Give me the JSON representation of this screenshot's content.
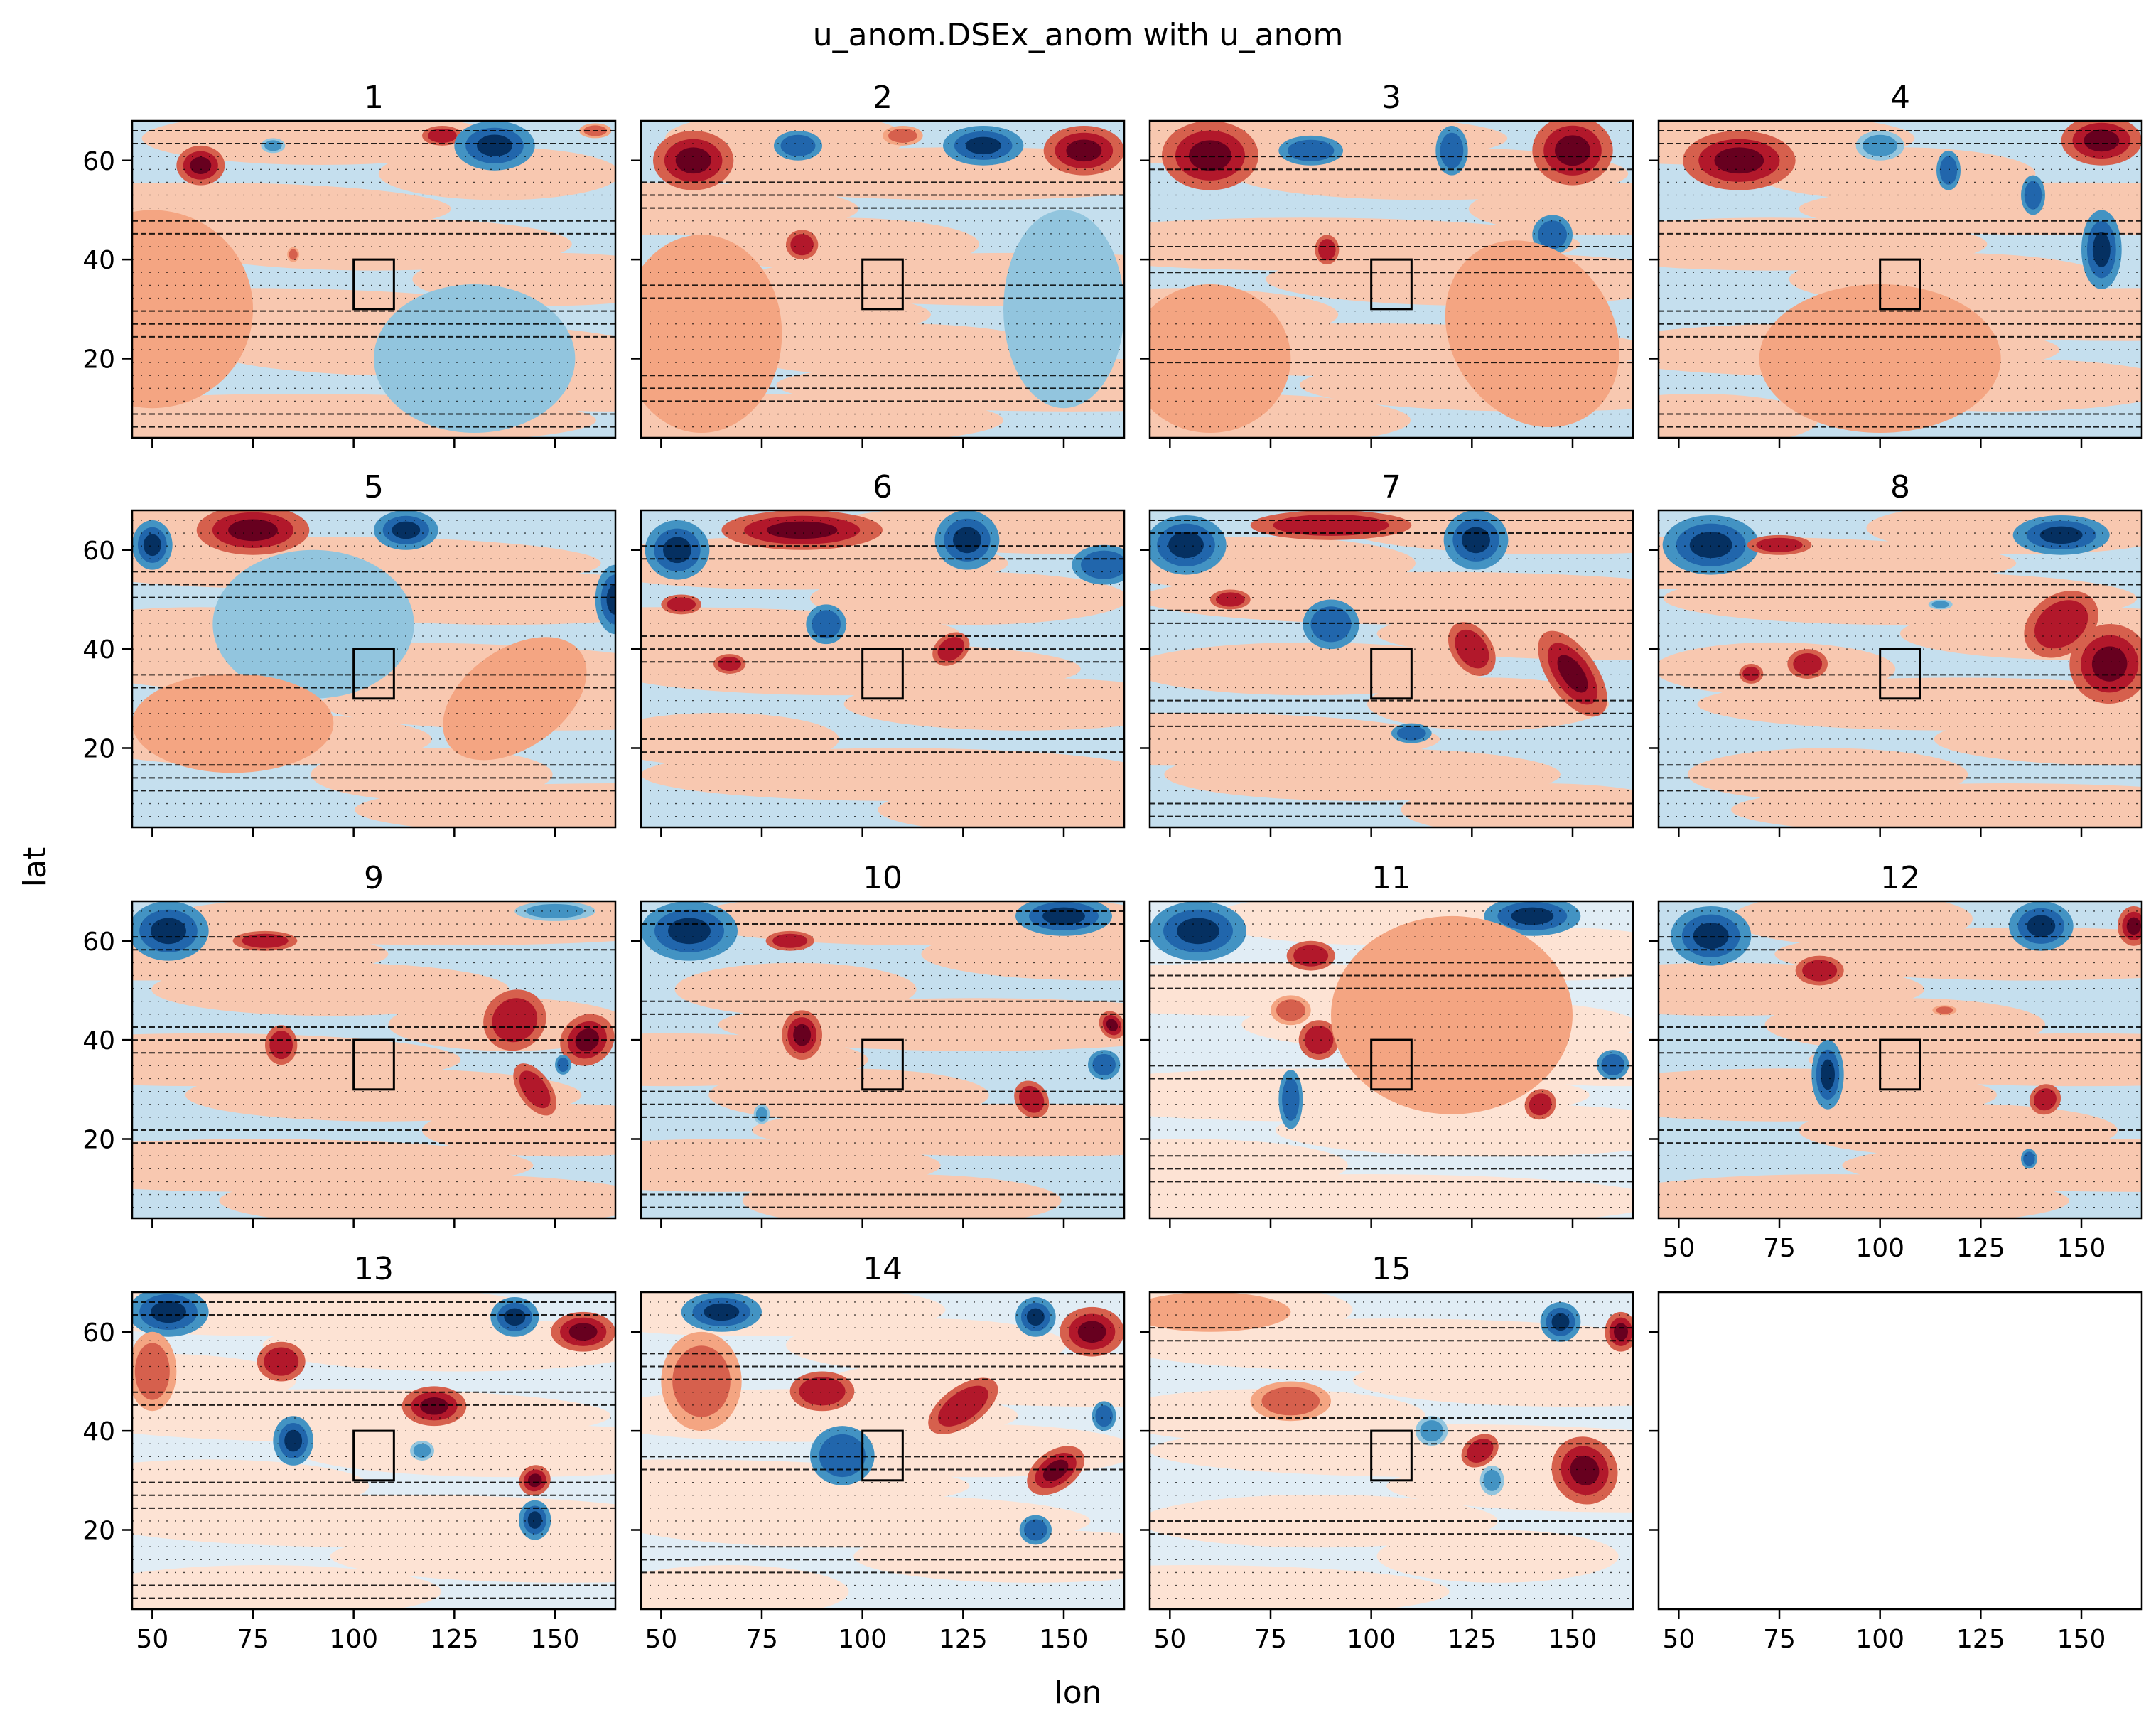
{
  "chart_data": {
    "type": "contour-grid",
    "title": "u_anom.DSEx_anom with u_anom",
    "xlabel": "lon",
    "ylabel": "lat",
    "xlim": [
      45,
      165
    ],
    "ylim": [
      4,
      68
    ],
    "x_ticks": [
      50,
      75,
      100,
      125,
      150
    ],
    "y_ticks": [
      20,
      40,
      60
    ],
    "box": {
      "lon": [
        100,
        110
      ],
      "lat": [
        30,
        40
      ]
    },
    "colormap": [
      "#053061",
      "#2166ac",
      "#4393c3",
      "#92c5de",
      "#d1e5f0",
      "#fddbc7",
      "#f4a582",
      "#d6604d",
      "#b2182b",
      "#67001f"
    ],
    "panels": [
      {
        "label": "1",
        "features": [
          {
            "lon": 62,
            "lat": 59,
            "rx": 6,
            "ry": 4,
            "v": 0.9
          },
          {
            "lon": 85,
            "lat": 41,
            "rx": 1.5,
            "ry": 1.5,
            "v": 0.6
          },
          {
            "lon": 122,
            "lat": 65,
            "rx": 5,
            "ry": 2,
            "v": 0.7
          },
          {
            "lon": 135,
            "lat": 63,
            "rx": 10,
            "ry": 5,
            "v": -1
          },
          {
            "lon": 80,
            "lat": 63,
            "rx": 3,
            "ry": 1.5,
            "v": -0.6
          },
          {
            "lon": 160,
            "lat": 66,
            "rx": 4,
            "ry": 1.5,
            "v": 0.6
          },
          {
            "lon": 50,
            "lat": 30,
            "rx": 25,
            "ry": 20,
            "v": 0.15
          },
          {
            "lon": 130,
            "lat": 20,
            "rx": 25,
            "ry": 15,
            "v": -0.15
          }
        ]
      },
      {
        "label": "2",
        "features": [
          {
            "lon": 58,
            "lat": 60,
            "rx": 10,
            "ry": 6,
            "v": 1
          },
          {
            "lon": 84,
            "lat": 63,
            "rx": 6,
            "ry": 3,
            "v": -0.8
          },
          {
            "lon": 130,
            "lat": 63,
            "rx": 10,
            "ry": 4,
            "v": -0.9
          },
          {
            "lon": 155,
            "lat": 62,
            "rx": 10,
            "ry": 5,
            "v": 0.9
          },
          {
            "lon": 85,
            "lat": 43,
            "rx": 4,
            "ry": 3,
            "v": 0.8
          },
          {
            "lon": 110,
            "lat": 65,
            "rx": 5,
            "ry": 2,
            "v": 0.6
          },
          {
            "lon": 60,
            "lat": 25,
            "rx": 20,
            "ry": 20,
            "v": 0.15
          },
          {
            "lon": 150,
            "lat": 30,
            "rx": 15,
            "ry": 20,
            "v": -0.15
          }
        ]
      },
      {
        "label": "3",
        "features": [
          {
            "lon": 60,
            "lat": 61,
            "rx": 12,
            "ry": 7,
            "v": 1
          },
          {
            "lon": 85,
            "lat": 62,
            "rx": 8,
            "ry": 3,
            "v": -0.7
          },
          {
            "lon": 120,
            "lat": 62,
            "rx": 4,
            "ry": 5,
            "v": -0.8
          },
          {
            "lon": 150,
            "lat": 62,
            "rx": 10,
            "ry": 7,
            "v": 1
          },
          {
            "lon": 89,
            "lat": 42,
            "rx": 3,
            "ry": 3,
            "v": 0.8
          },
          {
            "lon": 145,
            "lat": 45,
            "rx": 5,
            "ry": 4,
            "v": -0.8
          },
          {
            "lon": 60,
            "lat": 20,
            "rx": 20,
            "ry": 15,
            "v": 0.15
          },
          {
            "lon": 140,
            "lat": 25,
            "rx": 20,
            "ry": 20,
            "v": 0.15
          }
        ]
      },
      {
        "label": "4",
        "features": [
          {
            "lon": 65,
            "lat": 60,
            "rx": 14,
            "ry": 6,
            "v": 0.9
          },
          {
            "lon": 100,
            "lat": 63,
            "rx": 6,
            "ry": 3,
            "v": -0.6
          },
          {
            "lon": 117,
            "lat": 58,
            "rx": 3,
            "ry": 4,
            "v": -0.7
          },
          {
            "lon": 155,
            "lat": 64,
            "rx": 10,
            "ry": 5,
            "v": 1
          },
          {
            "lon": 138,
            "lat": 53,
            "rx": 3,
            "ry": 4,
            "v": -0.8
          },
          {
            "lon": 155,
            "lat": 42,
            "rx": 5,
            "ry": 8,
            "v": -0.9
          },
          {
            "lon": 100,
            "lat": 20,
            "rx": 30,
            "ry": 15,
            "v": 0.15
          }
        ]
      },
      {
        "label": "5",
        "features": [
          {
            "lon": 75,
            "lat": 64,
            "rx": 14,
            "ry": 5,
            "v": 1
          },
          {
            "lon": 50,
            "lat": 61,
            "rx": 5,
            "ry": 5,
            "v": -1
          },
          {
            "lon": 113,
            "lat": 64,
            "rx": 8,
            "ry": 4,
            "v": -0.9
          },
          {
            "lon": 165,
            "lat": 50,
            "rx": 5,
            "ry": 7,
            "v": -0.9
          },
          {
            "lon": 90,
            "lat": 45,
            "rx": 25,
            "ry": 15,
            "v": -0.3
          },
          {
            "lon": 70,
            "lat": 25,
            "rx": 25,
            "ry": 10,
            "v": 0.3
          },
          {
            "lon": 140,
            "lat": 30,
            "rx": 20,
            "ry": 10,
            "v": 0.3
          }
        ]
      },
      {
        "label": "6",
        "features": [
          {
            "lon": 54,
            "lat": 60,
            "rx": 8,
            "ry": 6,
            "v": -1
          },
          {
            "lon": 85,
            "lat": 64,
            "rx": 20,
            "ry": 4,
            "v": 1
          },
          {
            "lon": 126,
            "lat": 62,
            "rx": 8,
            "ry": 6,
            "v": -0.9
          },
          {
            "lon": 160,
            "lat": 57,
            "rx": 8,
            "ry": 4,
            "v": -0.8
          },
          {
            "lon": 91,
            "lat": 45,
            "rx": 5,
            "ry": 4,
            "v": -0.8
          },
          {
            "lon": 55,
            "lat": 49,
            "rx": 5,
            "ry": 2,
            "v": 0.8
          },
          {
            "lon": 67,
            "lat": 37,
            "rx": 4,
            "ry": 2,
            "v": 0.7
          },
          {
            "lon": 122,
            "lat": 40,
            "rx": 5,
            "ry": 3,
            "v": 0.8
          }
        ]
      },
      {
        "label": "7",
        "features": [
          {
            "lon": 54,
            "lat": 61,
            "rx": 10,
            "ry": 6,
            "v": -1
          },
          {
            "lon": 90,
            "lat": 65,
            "rx": 20,
            "ry": 3,
            "v": 0.8
          },
          {
            "lon": 126,
            "lat": 62,
            "rx": 8,
            "ry": 6,
            "v": -0.9
          },
          {
            "lon": 90,
            "lat": 45,
            "rx": 7,
            "ry": 5,
            "v": -0.8
          },
          {
            "lon": 125,
            "lat": 40,
            "rx": 5,
            "ry": 6,
            "v": 0.8
          },
          {
            "lon": 150,
            "lat": 35,
            "rx": 6,
            "ry": 10,
            "v": 1
          },
          {
            "lon": 65,
            "lat": 50,
            "rx": 5,
            "ry": 2,
            "v": 0.7
          },
          {
            "lon": 110,
            "lat": 23,
            "rx": 5,
            "ry": 2,
            "v": -0.8
          }
        ]
      },
      {
        "label": "8",
        "features": [
          {
            "lon": 58,
            "lat": 61,
            "rx": 12,
            "ry": 6,
            "v": -1
          },
          {
            "lon": 75,
            "lat": 61,
            "rx": 8,
            "ry": 2,
            "v": 0.8
          },
          {
            "lon": 145,
            "lat": 63,
            "rx": 12,
            "ry": 4,
            "v": -1
          },
          {
            "lon": 145,
            "lat": 45,
            "rx": 10,
            "ry": 6,
            "v": 0.8
          },
          {
            "lon": 157,
            "lat": 37,
            "rx": 10,
            "ry": 8,
            "v": 1
          },
          {
            "lon": 82,
            "lat": 37,
            "rx": 5,
            "ry": 3,
            "v": 0.8
          },
          {
            "lon": 115,
            "lat": 49,
            "rx": 3,
            "ry": 1,
            "v": -0.6
          },
          {
            "lon": 68,
            "lat": 35,
            "rx": 3,
            "ry": 2,
            "v": 0.7
          }
        ]
      },
      {
        "label": "9",
        "features": [
          {
            "lon": 54,
            "lat": 62,
            "rx": 10,
            "ry": 6,
            "v": -1
          },
          {
            "lon": 78,
            "lat": 60,
            "rx": 8,
            "ry": 2,
            "v": 0.8
          },
          {
            "lon": 82,
            "lat": 39,
            "rx": 4,
            "ry": 4,
            "v": 0.8
          },
          {
            "lon": 140,
            "lat": 44,
            "rx": 8,
            "ry": 6,
            "v": 0.8
          },
          {
            "lon": 158,
            "lat": 40,
            "rx": 7,
            "ry": 5,
            "v": 1
          },
          {
            "lon": 145,
            "lat": 30,
            "rx": 4,
            "ry": 6,
            "v": 0.8
          },
          {
            "lon": 152,
            "lat": 35,
            "rx": 2,
            "ry": 2,
            "v": -0.8
          },
          {
            "lon": 150,
            "lat": 66,
            "rx": 10,
            "ry": 2,
            "v": -0.6
          }
        ]
      },
      {
        "label": "10",
        "features": [
          {
            "lon": 57,
            "lat": 62,
            "rx": 12,
            "ry": 6,
            "v": -1
          },
          {
            "lon": 82,
            "lat": 60,
            "rx": 6,
            "ry": 2,
            "v": 0.7
          },
          {
            "lon": 150,
            "lat": 65,
            "rx": 12,
            "ry": 4,
            "v": -1
          },
          {
            "lon": 85,
            "lat": 41,
            "rx": 5,
            "ry": 5,
            "v": 0.9
          },
          {
            "lon": 142,
            "lat": 28,
            "rx": 4,
            "ry": 4,
            "v": 0.8
          },
          {
            "lon": 160,
            "lat": 35,
            "rx": 4,
            "ry": 3,
            "v": -0.8
          },
          {
            "lon": 162,
            "lat": 43,
            "rx": 3,
            "ry": 3,
            "v": 1
          },
          {
            "lon": 75,
            "lat": 25,
            "rx": 2,
            "ry": 2,
            "v": -0.6
          }
        ]
      },
      {
        "label": "11",
        "features": [
          {
            "lon": 57,
            "lat": 62,
            "rx": 12,
            "ry": 6,
            "v": -1
          },
          {
            "lon": 85,
            "lat": 57,
            "rx": 6,
            "ry": 3,
            "v": 0.8
          },
          {
            "lon": 80,
            "lat": 46,
            "rx": 5,
            "ry": 3,
            "v": 0.6
          },
          {
            "lon": 87,
            "lat": 40,
            "rx": 5,
            "ry": 4,
            "v": 0.7
          },
          {
            "lon": 140,
            "lat": 65,
            "rx": 12,
            "ry": 4,
            "v": -0.9
          },
          {
            "lon": 160,
            "lat": 35,
            "rx": 4,
            "ry": 3,
            "v": -0.8
          },
          {
            "lon": 80,
            "lat": 28,
            "rx": 3,
            "ry": 6,
            "v": -0.8
          },
          {
            "lon": 142,
            "lat": 27,
            "rx": 4,
            "ry": 3,
            "v": 0.8
          },
          {
            "lon": 120,
            "lat": 45,
            "rx": 30,
            "ry": 20,
            "v": 0.08
          }
        ]
      },
      {
        "label": "12",
        "features": [
          {
            "lon": 58,
            "lat": 61,
            "rx": 10,
            "ry": 6,
            "v": -1
          },
          {
            "lon": 85,
            "lat": 54,
            "rx": 6,
            "ry": 3,
            "v": 0.8
          },
          {
            "lon": 140,
            "lat": 63,
            "rx": 8,
            "ry": 5,
            "v": -1
          },
          {
            "lon": 163,
            "lat": 63,
            "rx": 4,
            "ry": 4,
            "v": 1
          },
          {
            "lon": 87,
            "lat": 33,
            "rx": 4,
            "ry": 7,
            "v": -0.9
          },
          {
            "lon": 141,
            "lat": 28,
            "rx": 4,
            "ry": 3,
            "v": 0.8
          },
          {
            "lon": 137,
            "lat": 16,
            "rx": 2,
            "ry": 2,
            "v": -0.8
          },
          {
            "lon": 116,
            "lat": 46,
            "rx": 3,
            "ry": 1,
            "v": 0.6
          }
        ]
      },
      {
        "label": "13",
        "features": [
          {
            "lon": 54,
            "lat": 64,
            "rx": 10,
            "ry": 5,
            "v": -1
          },
          {
            "lon": 50,
            "lat": 52,
            "rx": 6,
            "ry": 8,
            "v": 0.6
          },
          {
            "lon": 82,
            "lat": 54,
            "rx": 6,
            "ry": 4,
            "v": 0.8
          },
          {
            "lon": 120,
            "lat": 45,
            "rx": 8,
            "ry": 4,
            "v": 0.9
          },
          {
            "lon": 140,
            "lat": 63,
            "rx": 6,
            "ry": 4,
            "v": -1
          },
          {
            "lon": 157,
            "lat": 60,
            "rx": 8,
            "ry": 4,
            "v": 1
          },
          {
            "lon": 85,
            "lat": 38,
            "rx": 5,
            "ry": 5,
            "v": -0.9
          },
          {
            "lon": 145,
            "lat": 30,
            "rx": 4,
            "ry": 3,
            "v": 0.9
          },
          {
            "lon": 145,
            "lat": 22,
            "rx": 4,
            "ry": 4,
            "v": -0.9
          },
          {
            "lon": 117,
            "lat": 36,
            "rx": 3,
            "ry": 2,
            "v": -0.6
          }
        ]
      },
      {
        "label": "14",
        "features": [
          {
            "lon": 65,
            "lat": 64,
            "rx": 10,
            "ry": 4,
            "v": -1
          },
          {
            "lon": 60,
            "lat": 50,
            "rx": 10,
            "ry": 10,
            "v": 0.6
          },
          {
            "lon": 90,
            "lat": 48,
            "rx": 8,
            "ry": 4,
            "v": 0.7
          },
          {
            "lon": 125,
            "lat": 45,
            "rx": 10,
            "ry": 4,
            "v": 0.8
          },
          {
            "lon": 143,
            "lat": 63,
            "rx": 5,
            "ry": 4,
            "v": -0.9
          },
          {
            "lon": 157,
            "lat": 60,
            "rx": 8,
            "ry": 5,
            "v": 1
          },
          {
            "lon": 95,
            "lat": 35,
            "rx": 8,
            "ry": 6,
            "v": -0.7
          },
          {
            "lon": 148,
            "lat": 32,
            "rx": 8,
            "ry": 4,
            "v": 1
          },
          {
            "lon": 143,
            "lat": 20,
            "rx": 4,
            "ry": 3,
            "v": -0.8
          },
          {
            "lon": 160,
            "lat": 43,
            "rx": 3,
            "ry": 3,
            "v": -0.8
          }
        ]
      },
      {
        "label": "15",
        "features": [
          {
            "lon": 80,
            "lat": 46,
            "rx": 10,
            "ry": 4,
            "v": 0.6
          },
          {
            "lon": 147,
            "lat": 62,
            "rx": 5,
            "ry": 4,
            "v": -0.9
          },
          {
            "lon": 162,
            "lat": 60,
            "rx": 4,
            "ry": 4,
            "v": 1
          },
          {
            "lon": 127,
            "lat": 36,
            "rx": 5,
            "ry": 3,
            "v": 0.7
          },
          {
            "lon": 153,
            "lat": 32,
            "rx": 8,
            "ry": 7,
            "v": 1
          },
          {
            "lon": 115,
            "lat": 40,
            "rx": 4,
            "ry": 3,
            "v": -0.6
          },
          {
            "lon": 130,
            "lat": 30,
            "rx": 3,
            "ry": 3,
            "v": -0.6
          },
          {
            "lon": 60,
            "lat": 64,
            "rx": 20,
            "ry": 4,
            "v": 0.3
          }
        ]
      }
    ]
  }
}
